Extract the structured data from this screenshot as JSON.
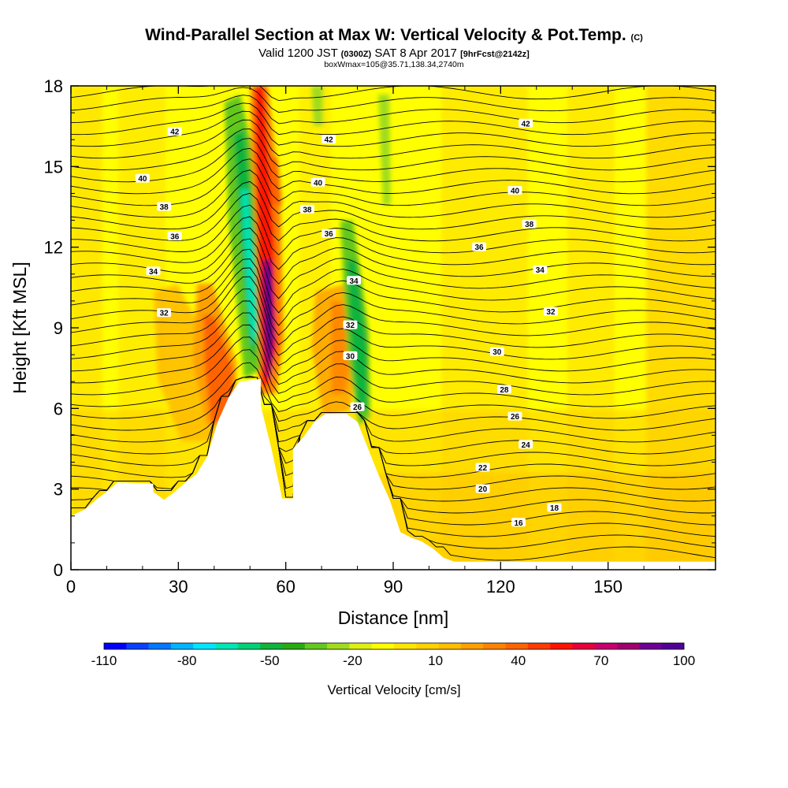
{
  "header": {
    "title_main": "Wind-Parallel Section at Max W: Vertical Velocity & Pot.Temp.",
    "title_mark": "(C)",
    "subtitle_valid": "Valid 1200 JST",
    "subtitle_utc": "(0300Z)",
    "subtitle_date": "SAT 8 Apr 2017",
    "subtitle_fcst": "[9hrFcst@2142z]",
    "subtitle_box": "boxWmax=105@35.71,138.34,2740m"
  },
  "chart_data": {
    "type": "heatmap",
    "xlabel": "Distance [nm]",
    "ylabel": "Height [Kft MSL]",
    "xlim": [
      0,
      180
    ],
    "ylim": [
      0,
      18
    ],
    "x_ticks": [
      "0",
      "30",
      "60",
      "90",
      "120",
      "150"
    ],
    "y_ticks": [
      "0",
      "3",
      "6",
      "9",
      "12",
      "15",
      "18"
    ],
    "terrain_kft": [
      [
        0,
        2.0
      ],
      [
        4,
        2.25
      ],
      [
        7,
        2.6
      ],
      [
        10,
        2.9
      ],
      [
        13,
        3.25
      ],
      [
        23,
        3.2
      ],
      [
        23,
        2.9
      ],
      [
        26,
        2.6
      ],
      [
        29,
        2.9
      ],
      [
        32,
        3.25
      ],
      [
        35,
        3.55
      ],
      [
        38,
        4.2
      ],
      [
        41,
        5.5
      ],
      [
        44,
        6.4
      ],
      [
        47,
        7.0
      ],
      [
        53,
        7.1
      ],
      [
        53,
        6.1
      ],
      [
        56,
        4.5
      ],
      [
        59,
        2.65
      ],
      [
        62,
        2.65
      ],
      [
        62,
        4.5
      ],
      [
        65,
        4.95
      ],
      [
        68,
        5.5
      ],
      [
        71,
        5.8
      ],
      [
        77,
        5.8
      ],
      [
        80,
        5.5
      ],
      [
        83,
        4.5
      ],
      [
        86,
        3.5
      ],
      [
        89,
        2.6
      ],
      [
        92,
        1.4
      ],
      [
        95,
        1.2
      ],
      [
        98,
        1.05
      ],
      [
        101,
        0.8
      ],
      [
        104,
        0.45
      ],
      [
        107,
        0.3
      ],
      [
        180,
        0.3
      ]
    ],
    "theta_contours": [
      {
        "value": "16",
        "label_x": 125,
        "label_y": 1.75
      },
      {
        "value": "18",
        "label_x": 135,
        "label_y": 2.3
      },
      {
        "value": "20",
        "label_x": 115,
        "label_y": 3.0
      },
      {
        "value": "22",
        "label_x": 115,
        "label_y": 3.8
      },
      {
        "value": "24",
        "label_x": 127,
        "label_y": 4.65
      },
      {
        "value": "26",
        "label_x": 124,
        "label_y": 5.7
      },
      {
        "value": "26",
        "label_x": 80,
        "label_y": 6.05
      },
      {
        "value": "28",
        "label_x": 121,
        "label_y": 6.7
      },
      {
        "value": "30",
        "label_x": 78,
        "label_y": 7.95
      },
      {
        "value": "30",
        "label_x": 119,
        "label_y": 8.1
      },
      {
        "value": "32",
        "label_x": 26,
        "label_y": 9.55
      },
      {
        "value": "32",
        "label_x": 78,
        "label_y": 9.1
      },
      {
        "value": "32",
        "label_x": 134,
        "label_y": 9.6
      },
      {
        "value": "34",
        "label_x": 23,
        "label_y": 11.1
      },
      {
        "value": "34",
        "label_x": 79,
        "label_y": 10.75
      },
      {
        "value": "34",
        "label_x": 131,
        "label_y": 11.15
      },
      {
        "value": "36",
        "label_x": 29,
        "label_y": 12.4
      },
      {
        "value": "36",
        "label_x": 72,
        "label_y": 12.5
      },
      {
        "value": "36",
        "label_x": 114,
        "label_y": 12.0
      },
      {
        "value": "38",
        "label_x": 26,
        "label_y": 13.5
      },
      {
        "value": "38",
        "label_x": 66,
        "label_y": 13.4
      },
      {
        "value": "38",
        "label_x": 128,
        "label_y": 12.85
      },
      {
        "value": "40",
        "label_x": 20,
        "label_y": 14.55
      },
      {
        "value": "40",
        "label_x": 69,
        "label_y": 14.4
      },
      {
        "value": "40",
        "label_x": 124,
        "label_y": 14.1
      },
      {
        "value": "42",
        "label_x": 29,
        "label_y": 16.3
      },
      {
        "value": "42",
        "label_x": 72,
        "label_y": 16.0
      },
      {
        "value": "42",
        "label_x": 127,
        "label_y": 16.6
      }
    ],
    "colorbar": {
      "label": "Vertical Velocity [cm/s]",
      "tick_labels": [
        "-110",
        "-80",
        "-50",
        "-20",
        "10",
        "40",
        "70",
        "100"
      ],
      "colors": [
        "#0000ff",
        "#0a40ff",
        "#0078ff",
        "#00b4ff",
        "#00e6ff",
        "#00e6b4",
        "#00d278",
        "#10b43c",
        "#28aa14",
        "#64c81e",
        "#a0dc1e",
        "#dcf014",
        "#ffff00",
        "#ffe600",
        "#ffd200",
        "#ffbe00",
        "#ffa000",
        "#ff8200",
        "#ff6400",
        "#ff3c00",
        "#ff1400",
        "#e6003c",
        "#c8006e",
        "#a0006e",
        "#6e0096",
        "#500096"
      ]
    }
  }
}
